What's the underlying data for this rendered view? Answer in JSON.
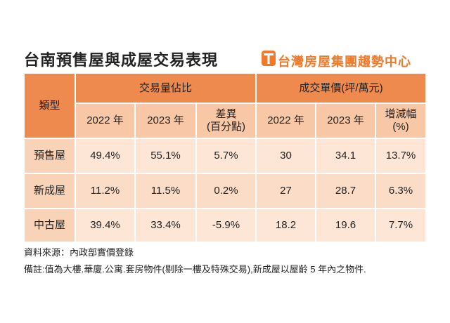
{
  "title": "台南預售屋與成屋交易表現",
  "brand": "台灣房屋集團趨勢中心",
  "table": {
    "corner": "類型",
    "groups": [
      "交易量佔比",
      "成交單價(坪/萬元)"
    ],
    "subheaders": [
      [
        "2022 年"
      ],
      [
        "2023 年"
      ],
      [
        "差異",
        "(百分點)"
      ],
      [
        "2022 年"
      ],
      [
        "2023 年"
      ],
      [
        "增減幅",
        "(%)"
      ]
    ],
    "rows": [
      [
        "預售屋",
        "49.4%",
        "55.1%",
        "5.7%",
        "30",
        "34.1",
        "13.7%"
      ],
      [
        "新成屋",
        "11.2%",
        "11.5%",
        "0.2%",
        "27",
        "28.7",
        "6.3%"
      ],
      [
        "中古屋",
        "39.4%",
        "33.4%",
        "-5.9%",
        "18.2",
        "19.6",
        "7.7%"
      ]
    ]
  },
  "notes": [
    "資料來源：內政部實價登錄",
    "備註:值為大樓.華廈.公寓.套房物件(剔除一樓及特殊交易),新成屋以屋齡 5 年內之物件."
  ]
}
